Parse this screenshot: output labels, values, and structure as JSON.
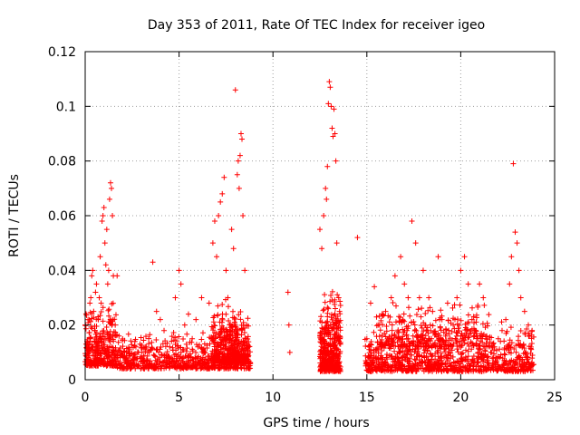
{
  "chart_data": {
    "type": "scatter",
    "title": "Day 353 of 2011, Rate Of TEC Index for receiver igeo",
    "xlabel": "GPS time / hours",
    "ylabel": "ROTI / TECUs",
    "xlim": [
      0,
      25
    ],
    "ylim": [
      0,
      0.12
    ],
    "x_ticks": [
      "0",
      "5",
      "10",
      "15",
      "20",
      "25"
    ],
    "y_ticks": [
      "0",
      "0.02",
      "0.04",
      "0.06",
      "0.08",
      "0.1",
      "0.12"
    ],
    "grid": true,
    "marker": "plus",
    "color": "#ff0000",
    "series": [
      {
        "points": [
          [
            0.0,
            0.02
          ],
          [
            0.1,
            0.014
          ],
          [
            0.15,
            0.022
          ],
          [
            0.2,
            0.01
          ],
          [
            0.25,
            0.028
          ],
          [
            0.3,
            0.03
          ],
          [
            0.35,
            0.038
          ],
          [
            0.4,
            0.04
          ],
          [
            0.45,
            0.025
          ],
          [
            0.5,
            0.018
          ],
          [
            0.55,
            0.032
          ],
          [
            0.6,
            0.035
          ],
          [
            0.7,
            0.022
          ],
          [
            0.75,
            0.03
          ],
          [
            0.8,
            0.045
          ],
          [
            0.85,
            0.028
          ],
          [
            0.9,
            0.058
          ],
          [
            0.95,
            0.06
          ],
          [
            1.0,
            0.063
          ],
          [
            1.05,
            0.05
          ],
          [
            1.1,
            0.042
          ],
          [
            1.15,
            0.055
          ],
          [
            1.2,
            0.035
          ],
          [
            1.25,
            0.04
          ],
          [
            1.3,
            0.066
          ],
          [
            1.35,
            0.072
          ],
          [
            1.4,
            0.07
          ],
          [
            1.45,
            0.06
          ],
          [
            1.5,
            0.038
          ],
          [
            1.6,
            0.02
          ],
          [
            1.7,
            0.038
          ],
          [
            1.8,
            0.016
          ],
          [
            2.0,
            0.009
          ],
          [
            2.2,
            0.008
          ],
          [
            2.5,
            0.007
          ],
          [
            2.7,
            0.012
          ],
          [
            3.0,
            0.008
          ],
          [
            3.2,
            0.012
          ],
          [
            3.4,
            0.01
          ],
          [
            3.6,
            0.043
          ],
          [
            3.8,
            0.025
          ],
          [
            4.0,
            0.022
          ],
          [
            4.2,
            0.018
          ],
          [
            4.5,
            0.012
          ],
          [
            4.8,
            0.03
          ],
          [
            5.0,
            0.04
          ],
          [
            5.1,
            0.035
          ],
          [
            5.3,
            0.02
          ],
          [
            5.5,
            0.024
          ],
          [
            5.7,
            0.015
          ],
          [
            5.9,
            0.022
          ],
          [
            6.0,
            0.012
          ],
          [
            6.2,
            0.03
          ],
          [
            6.4,
            0.01
          ],
          [
            6.6,
            0.028
          ],
          [
            6.8,
            0.05
          ],
          [
            6.9,
            0.058
          ],
          [
            7.0,
            0.045
          ],
          [
            7.1,
            0.06
          ],
          [
            7.2,
            0.065
          ],
          [
            7.3,
            0.068
          ],
          [
            7.4,
            0.074
          ],
          [
            7.5,
            0.04
          ],
          [
            7.6,
            0.03
          ],
          [
            7.7,
            0.018
          ],
          [
            7.8,
            0.055
          ],
          [
            7.9,
            0.048
          ],
          [
            8.0,
            0.106
          ],
          [
            8.1,
            0.075
          ],
          [
            8.15,
            0.08
          ],
          [
            8.2,
            0.07
          ],
          [
            8.25,
            0.082
          ],
          [
            8.3,
            0.09
          ],
          [
            8.35,
            0.088
          ],
          [
            8.4,
            0.06
          ],
          [
            8.5,
            0.04
          ],
          [
            8.6,
            0.02
          ],
          [
            8.7,
            0.012
          ],
          [
            10.8,
            0.032
          ],
          [
            10.85,
            0.02
          ],
          [
            10.9,
            0.01
          ],
          [
            12.5,
            0.055
          ],
          [
            12.6,
            0.048
          ],
          [
            12.7,
            0.06
          ],
          [
            12.8,
            0.07
          ],
          [
            12.85,
            0.066
          ],
          [
            12.9,
            0.078
          ],
          [
            12.95,
            0.101
          ],
          [
            13.0,
            0.109
          ],
          [
            13.05,
            0.107
          ],
          [
            13.1,
            0.1
          ],
          [
            13.15,
            0.092
          ],
          [
            13.2,
            0.089
          ],
          [
            13.25,
            0.099
          ],
          [
            13.3,
            0.09
          ],
          [
            13.35,
            0.08
          ],
          [
            13.4,
            0.05
          ],
          [
            13.5,
            0.03
          ],
          [
            14.5,
            0.052
          ],
          [
            15.0,
            0.015
          ],
          [
            15.2,
            0.028
          ],
          [
            15.4,
            0.034
          ],
          [
            15.6,
            0.02
          ],
          [
            15.8,
            0.012
          ],
          [
            16.0,
            0.025
          ],
          [
            16.3,
            0.03
          ],
          [
            16.5,
            0.038
          ],
          [
            16.8,
            0.045
          ],
          [
            17.0,
            0.035
          ],
          [
            17.2,
            0.03
          ],
          [
            17.4,
            0.058
          ],
          [
            17.6,
            0.05
          ],
          [
            17.8,
            0.03
          ],
          [
            18.0,
            0.04
          ],
          [
            18.3,
            0.03
          ],
          [
            18.5,
            0.025
          ],
          [
            18.8,
            0.045
          ],
          [
            19.0,
            0.022
          ],
          [
            19.3,
            0.028
          ],
          [
            19.6,
            0.02
          ],
          [
            19.8,
            0.03
          ],
          [
            20.0,
            0.04
          ],
          [
            20.2,
            0.045
          ],
          [
            20.4,
            0.035
          ],
          [
            20.6,
            0.022
          ],
          [
            20.8,
            0.018
          ],
          [
            21.0,
            0.035
          ],
          [
            21.2,
            0.03
          ],
          [
            21.4,
            0.015
          ],
          [
            21.6,
            0.01
          ],
          [
            21.8,
            0.012
          ],
          [
            22.0,
            0.015
          ],
          [
            22.2,
            0.018
          ],
          [
            22.4,
            0.022
          ],
          [
            22.6,
            0.035
          ],
          [
            22.7,
            0.045
          ],
          [
            22.8,
            0.079
          ],
          [
            22.9,
            0.054
          ],
          [
            23.0,
            0.05
          ],
          [
            23.1,
            0.04
          ],
          [
            23.2,
            0.03
          ],
          [
            23.4,
            0.025
          ],
          [
            23.6,
            0.02
          ],
          [
            23.8,
            0.018
          ]
        ],
        "dense_bands": [
          {
            "x": [
              0.0,
              1.7
            ],
            "y": [
              0.005,
              0.03
            ],
            "n": 320
          },
          {
            "x": [
              1.7,
              8.8
            ],
            "y": [
              0.004,
              0.018
            ],
            "n": 650
          },
          {
            "x": [
              6.7,
              8.7
            ],
            "y": [
              0.006,
              0.03
            ],
            "n": 380
          },
          {
            "x": [
              12.5,
              13.6
            ],
            "y": [
              0.003,
              0.035
            ],
            "n": 420
          },
          {
            "x": [
              14.9,
              23.9
            ],
            "y": [
              0.003,
              0.022
            ],
            "n": 950
          },
          {
            "x": [
              15.5,
              21.5
            ],
            "y": [
              0.012,
              0.03
            ],
            "n": 260
          }
        ]
      }
    ]
  }
}
